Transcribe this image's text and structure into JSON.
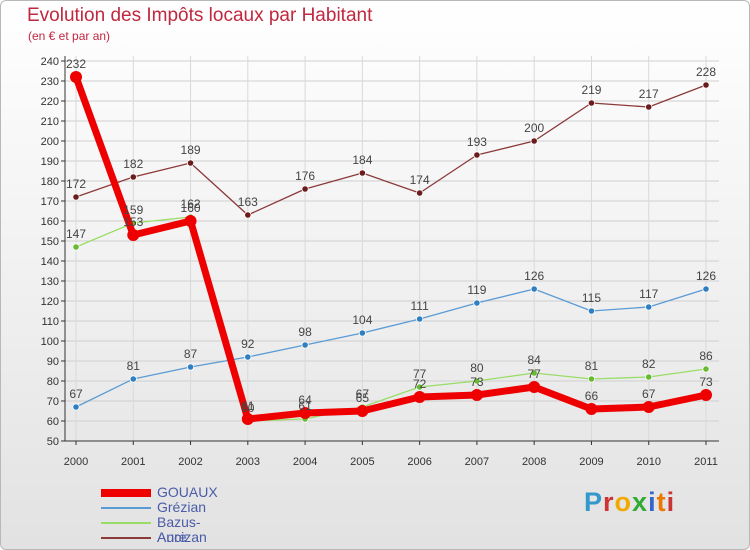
{
  "title": "Evolution des Impôts locaux par Habitant",
  "subtitle": "(en € et par an)",
  "logo": {
    "text": "Proxiti",
    "colors": [
      "#3399cc",
      "#cc3333",
      "#f2a900",
      "#33aa33",
      "#3366cc",
      "#ee7700",
      "#cc3333"
    ]
  },
  "chart_data": {
    "type": "line",
    "title": "Evolution des Impôts locaux par Habitant",
    "subtitle": "(en € et par an)",
    "xlabel": "",
    "ylabel": "",
    "categories": [
      "2000",
      "2001",
      "2002",
      "2003",
      "2004",
      "2005",
      "2006",
      "2007",
      "2008",
      "2009",
      "2010",
      "2011"
    ],
    "ylim": [
      50,
      240
    ],
    "yticks": [
      50,
      60,
      70,
      80,
      90,
      100,
      110,
      120,
      130,
      140,
      150,
      160,
      170,
      180,
      190,
      200,
      210,
      220,
      230,
      240
    ],
    "grid": true,
    "legend_position": "bottom-left",
    "series": [
      {
        "name": "GOUAUX",
        "color": "#ee0000",
        "line_color": "#ee0000",
        "marker_color": "#ee0000",
        "emphasis": "bold",
        "values": [
          232,
          153,
          160,
          61,
          64,
          65,
          72,
          73,
          77,
          66,
          67,
          73
        ],
        "labels": [
          "232",
          "153",
          "160",
          "61",
          "64",
          "65",
          "72",
          "73",
          "77",
          "66",
          "67",
          "73"
        ]
      },
      {
        "name": "Grézian",
        "color": "#5b9bd5",
        "line_color": "#5b9bd5",
        "marker_color": "#2f7fc1",
        "emphasis": "normal",
        "values": [
          67,
          81,
          87,
          92,
          98,
          104,
          111,
          119,
          126,
          115,
          117,
          126
        ],
        "labels": [
          "67",
          "81",
          "87",
          "92",
          "98",
          "104",
          "111",
          "119",
          "126",
          "115",
          "117",
          "126"
        ]
      },
      {
        "name": "Bazus-Aure",
        "color": "#99dd66",
        "line_color": "#99dd66",
        "marker_color": "#66bb33",
        "emphasis": "normal",
        "values": [
          147,
          159,
          162,
          60,
          61,
          67,
          77,
          80,
          84,
          81,
          82,
          86
        ],
        "labels": [
          "147",
          "159",
          "162",
          "60",
          "61",
          "67",
          "77",
          "80",
          "84",
          "81",
          "82",
          "86"
        ]
      },
      {
        "name": "Ancizan",
        "color": "#8b3a3a",
        "line_color": "#8b3a3a",
        "marker_color": "#6b1d1d",
        "emphasis": "normal",
        "values": [
          172,
          182,
          189,
          163,
          176,
          184,
          174,
          193,
          200,
          219,
          217,
          228
        ],
        "labels": [
          "172",
          "182",
          "189",
          "163",
          "176",
          "184",
          "174",
          "193",
          "200",
          "219",
          "217",
          "228"
        ]
      }
    ]
  }
}
